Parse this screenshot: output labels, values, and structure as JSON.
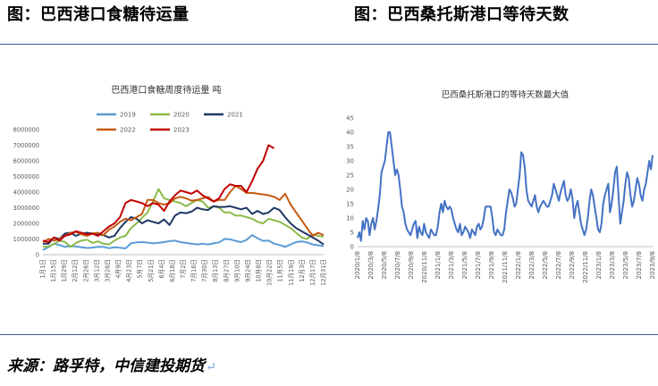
{
  "page": {
    "left_heading": "图：巴西港口食糖待运量",
    "right_heading": "图：巴西桑托斯港口等待天数",
    "footer_source": "来源：路孚特，中信建投期货",
    "footer_return_mark": "↵"
  },
  "chart_data": [
    {
      "type": "line",
      "title": "巴西港口食糖周度待运量  吨",
      "xlabel": "",
      "ylabel": "",
      "ylim": [
        0,
        8000000
      ],
      "yticks": [
        "0",
        "1000000",
        "2000000",
        "3000000",
        "4000000",
        "5000000",
        "6000000",
        "7000000",
        "8000000"
      ],
      "x_tick_labels": [
        "1月1日",
        "1月15日",
        "1月29日",
        "2月12日",
        "2月26日",
        "3月12日",
        "3月26日",
        "4月9日",
        "4月23日",
        "5月7日",
        "5月21日",
        "6月4日",
        "6月18日",
        "7月2日",
        "7月16日",
        "7月30日",
        "8月13日",
        "8月27日",
        "9月10日",
        "9月24日",
        "10月8日",
        "10月22日",
        "11月5日",
        "11月19日",
        "12月3日",
        "12月17日",
        "12月31日"
      ],
      "grid": false,
      "legend": "top",
      "series": [
        {
          "name": "2019",
          "color": "#5b9bd5",
          "values": [
            300000,
            480000,
            700000,
            620000,
            500000,
            550000,
            520000,
            470000,
            430000,
            450000,
            500000,
            500000,
            420000,
            470000,
            440000,
            400000,
            720000,
            780000,
            800000,
            770000,
            720000,
            760000,
            800000,
            860000,
            900000,
            800000,
            750000,
            700000,
            650000,
            700000,
            650000,
            720000,
            780000,
            1000000,
            980000,
            880000,
            800000,
            950000,
            1250000,
            1050000,
            880000,
            900000,
            700000,
            620000,
            500000,
            650000,
            800000,
            850000,
            780000,
            650000,
            600000,
            550000
          ]
        },
        {
          "name": "2020",
          "color": "#8cba4a",
          "values": [
            500000,
            520000,
            680000,
            900000,
            820000,
            500000,
            750000,
            900000,
            960000,
            750000,
            850000,
            700000,
            650000,
            900000,
            1100000,
            1200000,
            1700000,
            2000000,
            2350000,
            2700000,
            3400000,
            4200000,
            3600000,
            3500000,
            3400000,
            3300000,
            3100000,
            3300000,
            3500000,
            3400000,
            3000000,
            3100000,
            3000000,
            2700000,
            2700000,
            2500000,
            2500000,
            2400000,
            2300000,
            2100000,
            2000000,
            2300000,
            2200000,
            2100000,
            1900000,
            1700000,
            1400000,
            1100000,
            1000000,
            1300000,
            1200000,
            1150000
          ]
        },
        {
          "name": "2021",
          "color": "#203864",
          "values": [
            700000,
            700000,
            1100000,
            1000000,
            1350000,
            1400000,
            1200000,
            1350000,
            1400000,
            1350000,
            1300000,
            1250000,
            1100000,
            1200000,
            1700000,
            2100000,
            2400000,
            2300000,
            2000000,
            2200000,
            2100000,
            2000000,
            2250000,
            1900000,
            2500000,
            2700000,
            2650000,
            2750000,
            3000000,
            2900000,
            2850000,
            3100000,
            3050000,
            3050000,
            3100000,
            3000000,
            2900000,
            3000000,
            2600000,
            2800000,
            2600000,
            2700000,
            3000000,
            2850000,
            2400000,
            2000000,
            1700000,
            1500000,
            1300000,
            1100000,
            900000,
            650000
          ]
        },
        {
          "name": "2022",
          "color": "#c55a11",
          "values": [
            800000,
            1000000,
            900000,
            1000000,
            1200000,
            1400000,
            1450000,
            1300000,
            1200000,
            1350000,
            1400000,
            1250000,
            1600000,
            1800000,
            2100000,
            2300000,
            2200000,
            2400000,
            2600000,
            3500000,
            3500000,
            3300000,
            3200000,
            3300000,
            3600000,
            3700000,
            3600000,
            3450000,
            3500000,
            3600000,
            3700000,
            3400000,
            3500000,
            3500000,
            4000000,
            4400000,
            4200000,
            3950000,
            3950000,
            3900000,
            3850000,
            3800000,
            3700000,
            3500000,
            3900000,
            3200000,
            2700000,
            2200000,
            1700000,
            1200000,
            1400000,
            1250000
          ]
        },
        {
          "name": "2023",
          "color": "#c00000",
          "values": [
            900000,
            800000,
            1100000,
            900000,
            1200000,
            1300000,
            1500000,
            1400000,
            1300000,
            1350000,
            1200000,
            1500000,
            1800000,
            2000000,
            2400000,
            3300000,
            3500000,
            3400000,
            3300000,
            3100000,
            3300000,
            3200000,
            2800000,
            3400000,
            3800000,
            4100000,
            4000000,
            3900000,
            4100000,
            3800000,
            3600000,
            3400000,
            3600000,
            4200000,
            4500000,
            4400000,
            4400000,
            4000000,
            4700000,
            5500000,
            6000000,
            7000000,
            6800000,
            null,
            null,
            null,
            null,
            null,
            null,
            null,
            null,
            null
          ]
        }
      ]
    },
    {
      "type": "line",
      "title": "巴西桑托斯港口的等待天数最大值",
      "xlabel": "",
      "ylabel": "",
      "ylim": [
        0,
        45
      ],
      "yticks": [
        "0",
        "5",
        "10",
        "15",
        "20",
        "25",
        "30",
        "35",
        "40",
        "45"
      ],
      "x_tick_labels": [
        "2020/1/8",
        "2020/3/8",
        "2020/5/8",
        "2020/7/8",
        "2020/9/8",
        "2020/11/8",
        "2021/1/8",
        "2021/3/8",
        "2021/5/8",
        "2021/7/8",
        "2021/9/8",
        "2021/11/8",
        "2022/1/8",
        "2022/3/8",
        "2022/5/8",
        "2022/7/8",
        "2022/9/8",
        "2022/11/8",
        "2023/1/8",
        "2023/3/8",
        "2023/5/8",
        "2023/7/8",
        "2023/9/8"
      ],
      "grid": false,
      "legend": "none",
      "series": [
        {
          "name": "",
          "color": "#4472c4",
          "values": [
            3,
            5,
            2,
            9,
            6,
            10,
            9,
            4,
            8,
            10,
            6,
            9,
            13,
            18,
            26,
            28,
            30,
            35,
            40,
            40,
            35,
            30,
            25,
            27,
            25,
            20,
            14,
            12,
            8,
            6,
            5,
            4,
            6,
            8,
            9,
            3,
            7,
            5,
            4,
            8,
            5,
            4,
            3,
            6,
            5,
            4,
            4,
            7,
            12,
            15,
            12,
            16,
            14,
            13,
            14,
            13,
            10,
            8,
            6,
            5,
            8,
            4,
            5,
            7,
            6,
            5,
            3,
            6,
            5,
            4,
            7,
            8,
            6,
            7,
            10,
            14,
            14,
            14,
            14,
            10,
            5,
            4,
            6,
            5,
            4,
            4,
            6,
            12,
            16,
            20,
            19,
            17,
            14,
            15,
            20,
            25,
            33,
            32,
            28,
            20,
            16,
            15,
            14,
            16,
            18,
            14,
            12,
            14,
            15,
            16,
            15,
            14,
            14,
            16,
            18,
            22,
            20,
            18,
            16,
            19,
            21,
            23,
            18,
            16,
            17,
            20,
            17,
            10,
            14,
            16,
            12,
            8,
            6,
            4,
            6,
            10,
            16,
            20,
            18,
            14,
            10,
            6,
            5,
            8,
            15,
            18,
            20,
            22,
            12,
            15,
            20,
            26,
            28,
            18,
            8,
            12,
            16,
            22,
            26,
            24,
            18,
            14,
            16,
            20,
            24,
            22,
            18,
            16,
            20,
            22,
            26,
            30,
            27,
            32
          ]
        }
      ]
    }
  ]
}
